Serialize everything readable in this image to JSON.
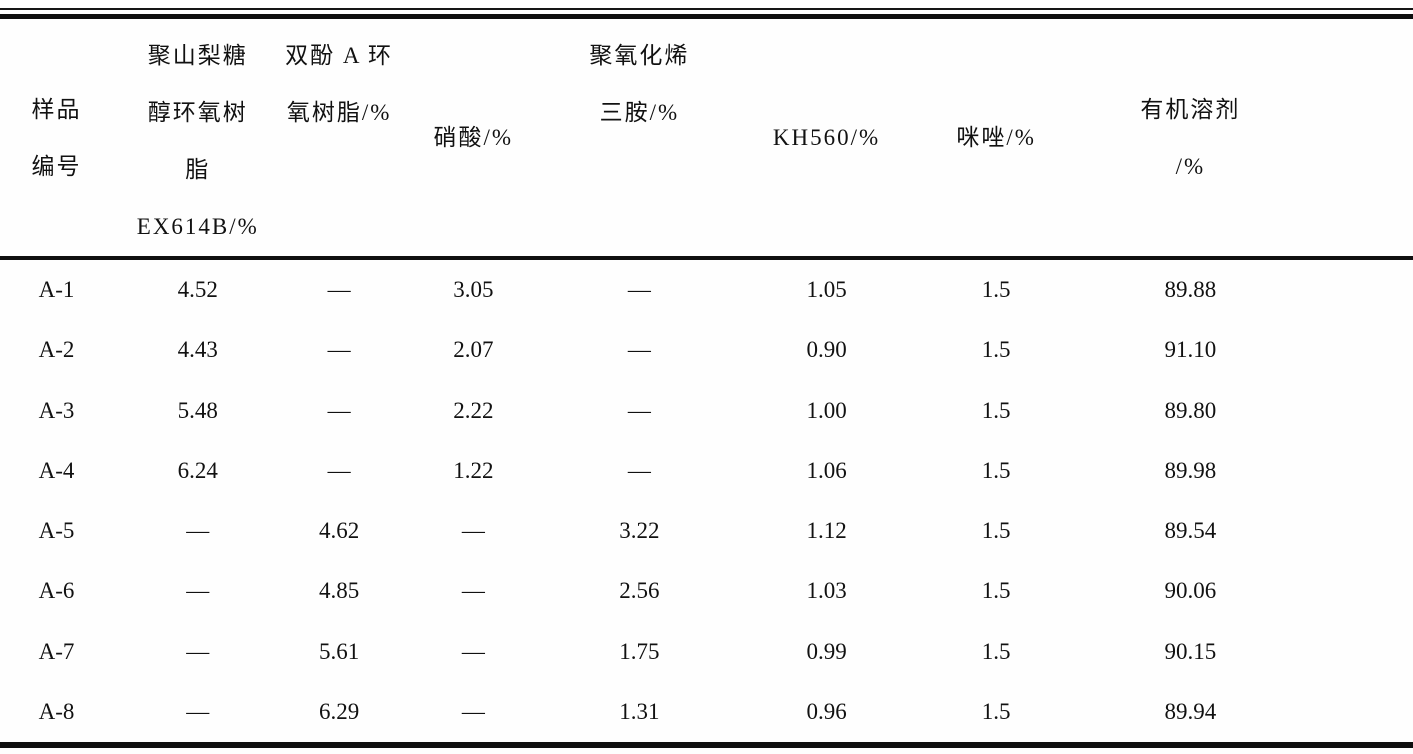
{
  "table": {
    "headers": [
      {
        "id": "sample-no",
        "lines": [
          "样品",
          "编号"
        ]
      },
      {
        "id": "polysorbitol-epoxy",
        "lines": [
          "聚山梨糖",
          "醇环氧树",
          "脂",
          "EX614B/%"
        ]
      },
      {
        "id": "bisphenol-a-epoxy",
        "lines": [
          "双酚 A 环",
          "氧树脂/%"
        ]
      },
      {
        "id": "nitric-acid",
        "lines": [
          "硝酸/%"
        ]
      },
      {
        "id": "polyoxyalkylene-triamine",
        "lines": [
          "聚氧化烯",
          "三胺/%"
        ]
      },
      {
        "id": "kh560",
        "lines": [
          "KH560/%"
        ]
      },
      {
        "id": "imidazole",
        "lines": [
          "咪唑/%"
        ]
      },
      {
        "id": "organic-solvent",
        "lines": [
          "有机溶剂",
          "/%"
        ]
      }
    ],
    "rows": [
      [
        "A-1",
        "4.52",
        "—",
        "3.05",
        "—",
        "1.05",
        "1.5",
        "89.88"
      ],
      [
        "A-2",
        "4.43",
        "—",
        "2.07",
        "—",
        "0.90",
        "1.5",
        "91.10"
      ],
      [
        "A-3",
        "5.48",
        "—",
        "2.22",
        "—",
        "1.00",
        "1.5",
        "89.80"
      ],
      [
        "A-4",
        "6.24",
        "—",
        "1.22",
        "—",
        "1.06",
        "1.5",
        "89.98"
      ],
      [
        "A-5",
        "—",
        "4.62",
        "—",
        "3.22",
        "1.12",
        "1.5",
        "89.54"
      ],
      [
        "A-6",
        "—",
        "4.85",
        "—",
        "2.56",
        "1.03",
        "1.5",
        "90.06"
      ],
      [
        "A-7",
        "—",
        "5.61",
        "—",
        "1.75",
        "0.99",
        "1.5",
        "90.15"
      ],
      [
        "A-8",
        "—",
        "6.29",
        "—",
        "1.31",
        "0.96",
        "1.5",
        "89.94"
      ]
    ],
    "colors": {
      "text": "#111111",
      "rule": "#101010",
      "background": "#fefefe"
    }
  }
}
